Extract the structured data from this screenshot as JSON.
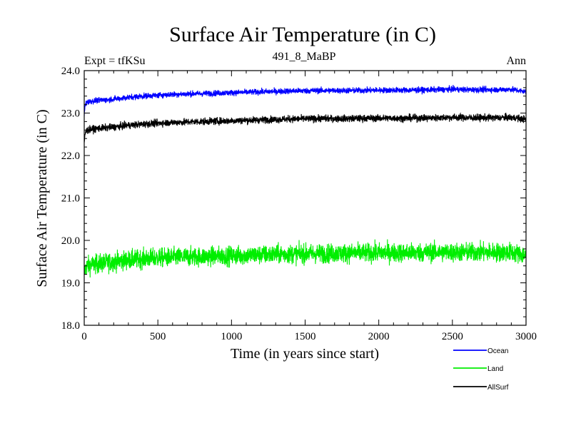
{
  "chart_data": {
    "type": "line",
    "title": "Surface Air Temperature (in C)",
    "subtitle": "491_8_MaBP",
    "left_label": "Expt = tfKSu",
    "right_label": "Ann",
    "xlabel": "Time (in years since start)",
    "ylabel": "Surface Air Temperature (in C)",
    "xlim": [
      0,
      3000
    ],
    "ylim": [
      18.0,
      24.0
    ],
    "x_ticks": [
      0,
      500,
      1000,
      1500,
      2000,
      2500,
      3000
    ],
    "x_tick_labels": [
      "0",
      "500",
      "1000",
      "1500",
      "2000",
      "2500",
      "3000"
    ],
    "y_ticks": [
      18.0,
      19.0,
      20.0,
      21.0,
      22.0,
      23.0,
      24.0
    ],
    "y_tick_labels": [
      "18.0",
      "19.0",
      "20.0",
      "21.0",
      "22.0",
      "23.0",
      "24.0"
    ],
    "grid": false,
    "legend_position": "bottom-right outside",
    "series": [
      {
        "name": "Ocean",
        "color": "#0000ff",
        "x": [
          0,
          5,
          10,
          20,
          50,
          100,
          200,
          300,
          400,
          500,
          600,
          700,
          800,
          900,
          1000,
          1200,
          1400,
          1600,
          1800,
          2000,
          2200,
          2400,
          2500,
          2600,
          2800,
          2900,
          3000
        ],
        "values": [
          22.95,
          23.15,
          23.22,
          23.26,
          23.28,
          23.3,
          23.33,
          23.37,
          23.4,
          23.42,
          23.44,
          23.45,
          23.46,
          23.47,
          23.48,
          23.5,
          23.52,
          23.53,
          23.53,
          23.54,
          23.54,
          23.55,
          23.56,
          23.55,
          23.55,
          23.56,
          23.5
        ],
        "noise": 0.05
      },
      {
        "name": "Land",
        "color": "#00ee00",
        "x": [
          0,
          5,
          10,
          20,
          50,
          100,
          200,
          300,
          400,
          500,
          600,
          700,
          800,
          900,
          1000,
          1200,
          1400,
          1600,
          1800,
          2000,
          2200,
          2400,
          2500,
          2600,
          2800,
          2900,
          3000
        ],
        "values": [
          19.15,
          19.3,
          19.35,
          19.4,
          19.43,
          19.45,
          19.5,
          19.54,
          19.57,
          19.59,
          19.6,
          19.61,
          19.62,
          19.63,
          19.64,
          19.66,
          19.68,
          19.69,
          19.7,
          19.71,
          19.71,
          19.72,
          19.72,
          19.72,
          19.72,
          19.72,
          19.65
        ],
        "noise": 0.16
      },
      {
        "name": "AllSurf",
        "color": "#000000",
        "x": [
          0,
          5,
          10,
          20,
          50,
          100,
          200,
          300,
          400,
          500,
          600,
          700,
          800,
          900,
          1000,
          1200,
          1400,
          1600,
          1800,
          2000,
          2200,
          2400,
          2500,
          2600,
          2800,
          2900,
          3000
        ],
        "values": [
          22.25,
          22.5,
          22.55,
          22.6,
          22.62,
          22.64,
          22.67,
          22.71,
          22.74,
          22.76,
          22.78,
          22.79,
          22.8,
          22.81,
          22.82,
          22.84,
          22.86,
          22.87,
          22.87,
          22.88,
          22.88,
          22.89,
          22.9,
          22.89,
          22.89,
          22.9,
          22.85
        ],
        "noise": 0.06
      }
    ]
  }
}
